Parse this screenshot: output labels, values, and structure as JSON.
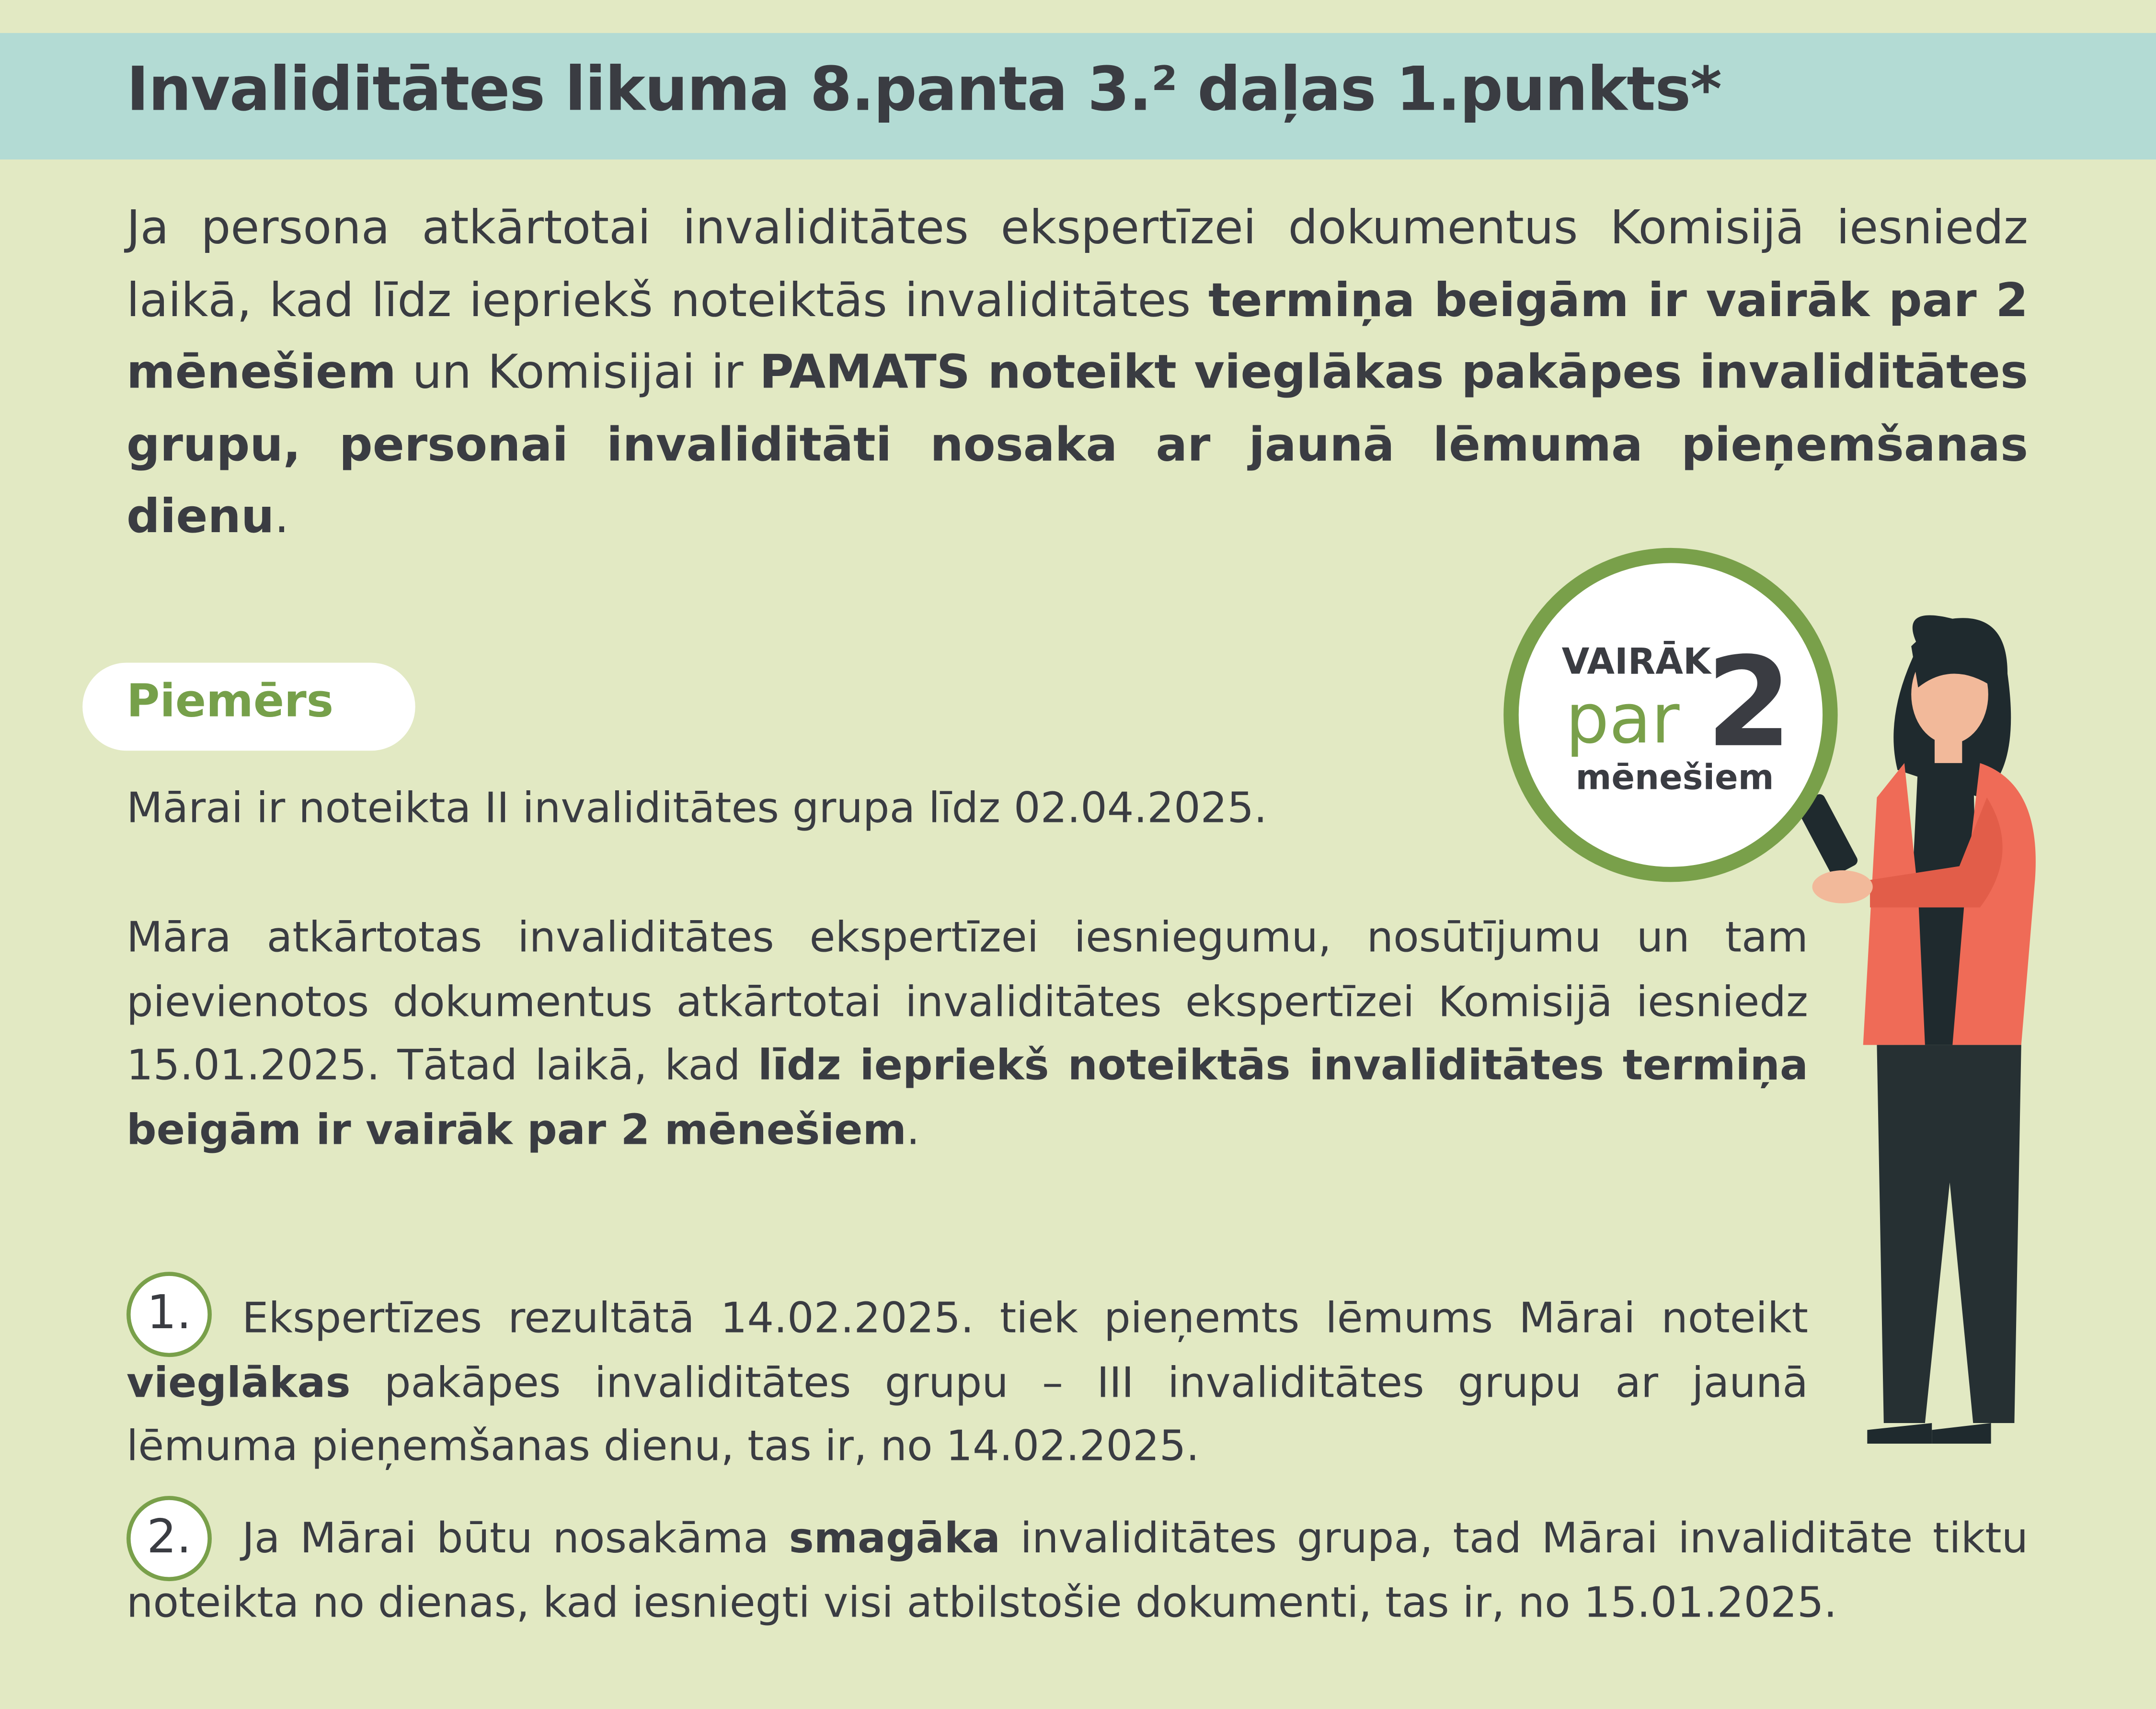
{
  "header": {
    "title": "Invaliditātes likuma 8.panta 3.² daļas 1.punkts*"
  },
  "intro": [
    "Ja persona atkārtotai invaliditātes ekspertīzei dokumentus Komisijā iesniedz laikā, kad līdz iepriekš noteiktās invaliditātes ",
    "termiņa beigām ir vairāk par 2 mēnešiem",
    " un Komisijai ir ",
    "PAMATS noteikt vieglākas pakāpes invaliditātes grupu, personai invaliditāti nosaka ar jaunā lēmuma pieņemšanas dienu",
    "."
  ],
  "example": {
    "label": "Piemērs",
    "paragraphs": [
      "Mārai ir noteikta II invaliditātes grupa līdz 02.04.2025.",
      [
        "Māra atkārtotas invaliditātes ekspertīzei iesniegumu, nosūtījumu un tam pievienotos dokumentus atkārtotai invaliditātes ekspertīzei Komisijā iesniedz 15.01.2025. Tātad laikā, kad ",
        "līdz iepriekš noteiktās invaliditātes termiņa beigām ir vairāk par 2 mēnešiem",
        "."
      ]
    ],
    "items": [
      {
        "number": "1.",
        "text": [
          "Ekspertīzes rezultātā 14.02.2025. tiek pieņemts lēmums Mārai noteikt ",
          "vieglākas",
          " pakāpes invaliditātes grupu – III invaliditātes grupu ar jaunā lēmuma pieņemšanas dienu, tas ir, no 14.02.2025."
        ]
      },
      {
        "number": "2.",
        "text": [
          "Ja Mārai būtu nosakāma ",
          "smagāka",
          " invaliditātes grupa, tad Mārai invaliditāte tiktu noteikta no dienas, kad iesniegti visi atbilstošie dokumenti, tas ir, no 15.01.2025."
        ]
      }
    ]
  },
  "badge": {
    "top": "VAIRĀK",
    "middle": "par",
    "number": "2",
    "bottom": "mēnešiem"
  }
}
